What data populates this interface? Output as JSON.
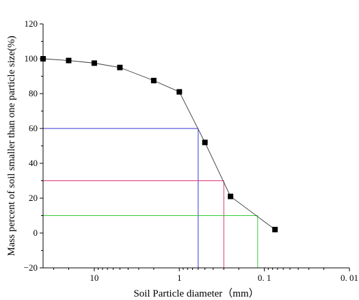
{
  "chart_data": {
    "type": "scatter",
    "xlabel": "Soil Particle diameter（mm）",
    "ylabel": "Mass percent of soil smaller than one particle size(%)",
    "x_scale": "log",
    "x_reversed": true,
    "xlim": [
      40,
      0.01
    ],
    "ylim": [
      -20,
      120
    ],
    "x_ticks": [
      10,
      1,
      0.1,
      0.01
    ],
    "x_tick_labels": [
      "10",
      "1",
      "0. 1",
      "0. 01"
    ],
    "y_ticks": [
      -20,
      0,
      20,
      40,
      60,
      80,
      100,
      120
    ],
    "y_tick_labels": [
      "−20",
      "0",
      "20",
      "40",
      "60",
      "80",
      "100",
      "120"
    ],
    "grid": false,
    "legend": "none",
    "series": [
      {
        "x": [
          40,
          20,
          10,
          5,
          2,
          1,
          0.5,
          0.25,
          0.075
        ],
        "y": [
          100,
          99,
          97.5,
          95,
          87.5,
          81,
          52,
          21,
          2
        ],
        "marker": "square",
        "color": "#000000"
      }
    ],
    "reference_lines": [
      {
        "y": 60,
        "x": 0.6,
        "color": "#3333dd"
      },
      {
        "y": 30,
        "x": 0.3,
        "color": "#dd3377"
      },
      {
        "y": 10,
        "x": 0.12,
        "color": "#33cc33"
      }
    ]
  }
}
